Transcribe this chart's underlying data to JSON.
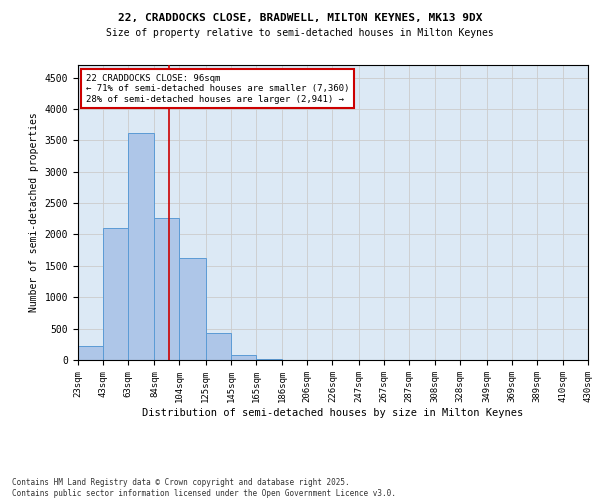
{
  "title1": "22, CRADDOCKS CLOSE, BRADWELL, MILTON KEYNES, MK13 9DX",
  "title2": "Size of property relative to semi-detached houses in Milton Keynes",
  "xlabel": "Distribution of semi-detached houses by size in Milton Keynes",
  "ylabel": "Number of semi-detached properties",
  "property_size": 96,
  "annotation_title": "22 CRADDOCKS CLOSE: 96sqm",
  "annotation_line1": "← 71% of semi-detached houses are smaller (7,360)",
  "annotation_line2": "28% of semi-detached houses are larger (2,941) →",
  "footer1": "Contains HM Land Registry data © Crown copyright and database right 2025.",
  "footer2": "Contains public sector information licensed under the Open Government Licence v3.0.",
  "bar_color": "#aec6e8",
  "bar_edge_color": "#5b9bd5",
  "vline_color": "#cc0000",
  "annotation_box_edge": "#cc0000",
  "background_color": "#ffffff",
  "grid_color": "#cccccc",
  "bin_edges": [
    23,
    43,
    63,
    84,
    104,
    125,
    145,
    165,
    186,
    206,
    226,
    247,
    267,
    287,
    308,
    328,
    349,
    369,
    389,
    410,
    430
  ],
  "bin_labels": [
    "23sqm",
    "43sqm",
    "63sqm",
    "84sqm",
    "104sqm",
    "125sqm",
    "145sqm",
    "165sqm",
    "186sqm",
    "206sqm",
    "226sqm",
    "247sqm",
    "267sqm",
    "287sqm",
    "308sqm",
    "328sqm",
    "349sqm",
    "369sqm",
    "389sqm",
    "410sqm",
    "430sqm"
  ],
  "bar_heights": [
    230,
    2100,
    3620,
    2270,
    1620,
    430,
    80,
    10,
    0,
    0,
    0,
    0,
    0,
    0,
    0,
    0,
    0,
    0,
    0,
    0
  ],
  "ylim": [
    0,
    4700
  ],
  "yticks": [
    0,
    500,
    1000,
    1500,
    2000,
    2500,
    3000,
    3500,
    4000,
    4500
  ]
}
